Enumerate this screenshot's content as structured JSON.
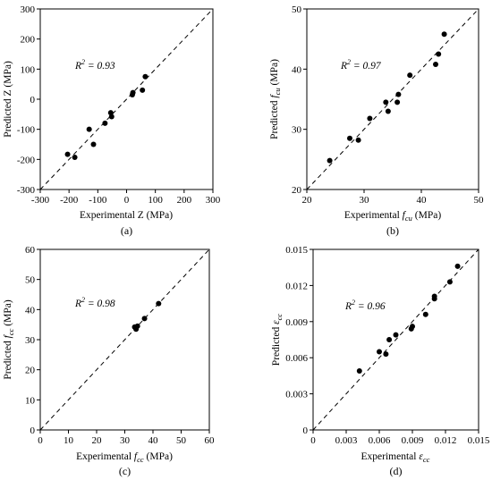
{
  "chart_data": [
    {
      "type": "scatter",
      "caption": "(a)",
      "r2": [
        "R",
        "2",
        " = 0.93"
      ],
      "xlabel": "Experimental Z (MPa)",
      "ylabel": "Predicted Z (MPa)",
      "xlim": [
        -300,
        300
      ],
      "ylim": [
        -300,
        300
      ],
      "xticks": [
        -300,
        -200,
        -100,
        0,
        100,
        200,
        300
      ],
      "yticks": [
        -300,
        -200,
        -100,
        0,
        100,
        200,
        300
      ],
      "points": [
        [
          -205,
          -183
        ],
        [
          -180,
          -193
        ],
        [
          -130,
          -100
        ],
        [
          -115,
          -150
        ],
        [
          -75,
          -80
        ],
        [
          -55,
          -45
        ],
        [
          -52,
          -58
        ],
        [
          20,
          15
        ],
        [
          22,
          22
        ],
        [
          55,
          30
        ],
        [
          65,
          75
        ]
      ]
    },
    {
      "type": "scatter",
      "caption": "(b)",
      "r2": [
        "R",
        "2",
        " = 0.97"
      ],
      "xlabel": [
        "Experimental ",
        "f",
        "cu",
        " (MPa)"
      ],
      "ylabel": [
        "Predicted ",
        "f",
        "cu",
        " (MPa)"
      ],
      "xlim": [
        20,
        50
      ],
      "ylim": [
        20,
        50
      ],
      "xticks": [
        20,
        30,
        40,
        50
      ],
      "yticks": [
        20,
        30,
        40,
        50
      ],
      "points": [
        [
          24,
          24.8
        ],
        [
          27.5,
          28.5
        ],
        [
          29,
          28.2
        ],
        [
          31,
          31.8
        ],
        [
          33.8,
          34.5
        ],
        [
          34.2,
          33
        ],
        [
          35.8,
          34.5
        ],
        [
          36,
          35.8
        ],
        [
          38,
          39
        ],
        [
          42.5,
          40.8
        ],
        [
          43,
          42.5
        ],
        [
          44,
          45.8
        ]
      ]
    },
    {
      "type": "scatter",
      "caption": "(c)",
      "r2": [
        "R",
        "2",
        " = 0.98"
      ],
      "xlabel": [
        "Experimental ",
        "f",
        "cc",
        " (MPa)"
      ],
      "ylabel": [
        "Predicted ",
        "f",
        "cc",
        " (MPa)"
      ],
      "xlim": [
        0,
        60
      ],
      "ylim": [
        0,
        60
      ],
      "xticks": [
        0,
        10,
        20,
        30,
        40,
        50,
        60
      ],
      "yticks": [
        0,
        10,
        20,
        30,
        40,
        50,
        60
      ],
      "points": [
        [
          33.5,
          34.2
        ],
        [
          34,
          33.5
        ],
        [
          34.5,
          34.5
        ],
        [
          37,
          37
        ],
        [
          42,
          42
        ]
      ]
    },
    {
      "type": "scatter",
      "caption": "(d)",
      "r2": [
        "R",
        "2",
        " = 0.96"
      ],
      "xlabel": [
        "Experimental ",
        "ε",
        "cc"
      ],
      "ylabel": [
        "Predicted ",
        "ε",
        "cc"
      ],
      "xlim": [
        0,
        0.015
      ],
      "ylim": [
        0,
        0.015
      ],
      "xticks": [
        "0",
        "0.003",
        "0.006",
        "0.009",
        "0.012",
        "0.015"
      ],
      "yticks": [
        "0",
        "0.003",
        "0.006",
        "0.009",
        "0.012",
        "0.015"
      ],
      "points": [
        [
          0.0042,
          0.0049
        ],
        [
          0.006,
          0.0065
        ],
        [
          0.0066,
          0.0063
        ],
        [
          0.0069,
          0.0075
        ],
        [
          0.0075,
          0.0079
        ],
        [
          0.0089,
          0.0084
        ],
        [
          0.009,
          0.0086
        ],
        [
          0.0102,
          0.0096
        ],
        [
          0.011,
          0.0109
        ],
        [
          0.011,
          0.0111
        ],
        [
          0.0124,
          0.0123
        ],
        [
          0.0131,
          0.0136
        ]
      ]
    }
  ]
}
